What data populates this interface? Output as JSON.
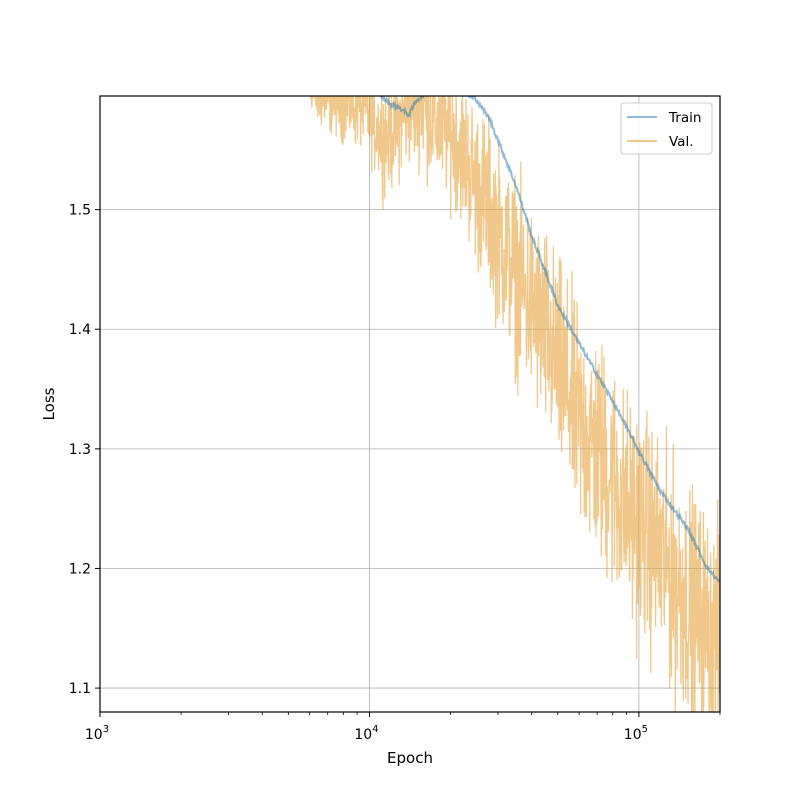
{
  "chart_data": {
    "type": "line",
    "title": "",
    "xlabel": "Epoch",
    "ylabel": "Loss",
    "xscale": "log",
    "xlim": [
      1000,
      200000
    ],
    "ylim": [
      1.08,
      1.595
    ],
    "grid": true,
    "legend_placement": "top-right",
    "x_major_ticks": [
      {
        "value": 1000,
        "base": "10",
        "exp": "3"
      },
      {
        "value": 10000,
        "base": "10",
        "exp": "4"
      },
      {
        "value": 100000,
        "base": "10",
        "exp": "5"
      }
    ],
    "y_ticks": [
      1.1,
      1.2,
      1.3,
      1.4,
      1.5
    ],
    "y_tick_labels": [
      "1.1",
      "1.2",
      "1.3",
      "1.4",
      "1.5"
    ],
    "series": [
      {
        "name": "Train",
        "color": "#1f77b4",
        "opacity": 0.5,
        "x": [
          11000,
          12000,
          13000,
          14000,
          15000,
          17000,
          20000,
          22000,
          25000,
          28000,
          30000,
          35000,
          40000,
          45000,
          50000,
          60000,
          70000,
          80000,
          100000,
          120000,
          150000,
          180000,
          200000
        ],
        "y": [
          1.595,
          1.588,
          1.585,
          1.579,
          1.592,
          1.6,
          1.6,
          1.598,
          1.592,
          1.575,
          1.558,
          1.52,
          1.478,
          1.448,
          1.42,
          1.388,
          1.362,
          1.34,
          1.298,
          1.265,
          1.235,
          1.2,
          1.188
        ]
      },
      {
        "name": "Val.",
        "color": "#e8a33d",
        "opacity": 0.6,
        "x": [
          5800,
          6500,
          7500,
          8500,
          9500,
          10500,
          11500,
          12500,
          13500,
          14500,
          15500,
          16500,
          18000,
          20000,
          22000,
          25000,
          28000,
          30000,
          33000,
          36000,
          40000,
          45000,
          50000,
          55000,
          60000,
          70000,
          80000,
          90000,
          100000,
          110000,
          120000,
          135000,
          150000,
          165000,
          180000,
          200000
        ],
        "y": [
          1.598,
          1.592,
          1.59,
          1.588,
          1.585,
          1.57,
          1.56,
          1.57,
          1.58,
          1.585,
          1.59,
          1.58,
          1.57,
          1.565,
          1.55,
          1.52,
          1.5,
          1.48,
          1.46,
          1.44,
          1.42,
          1.395,
          1.37,
          1.345,
          1.32,
          1.3,
          1.275,
          1.25,
          1.24,
          1.225,
          1.21,
          1.19,
          1.175,
          1.16,
          1.15,
          1.14
        ],
        "band_half_width": [
          0.0,
          0.025,
          0.03,
          0.035,
          0.035,
          0.04,
          0.05,
          0.05,
          0.05,
          0.05,
          0.05,
          0.055,
          0.055,
          0.06,
          0.06,
          0.07,
          0.075,
          0.075,
          0.08,
          0.085,
          0.085,
          0.09,
          0.09,
          0.095,
          0.095,
          0.1,
          0.1,
          0.1,
          0.1,
          0.1,
          0.1,
          0.1,
          0.1,
          0.1,
          0.1,
          0.1
        ]
      }
    ]
  }
}
